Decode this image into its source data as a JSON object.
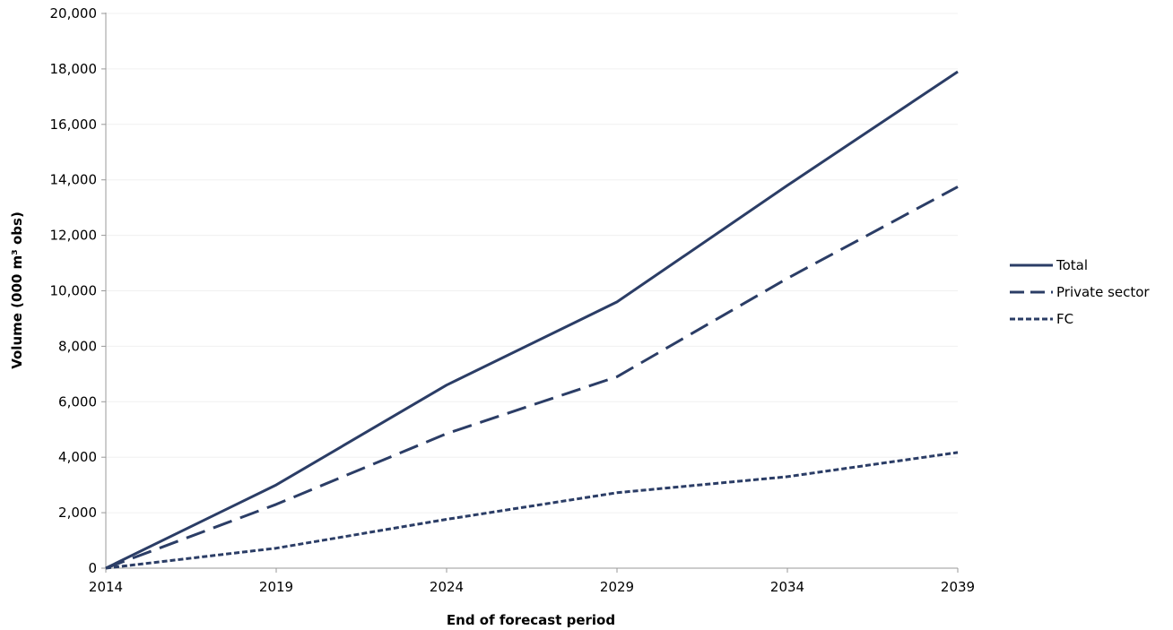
{
  "chart_data": {
    "type": "line",
    "xlabel": "End of forecast period",
    "ylabel": "Volume (000 m³ obs)",
    "x": [
      2014,
      2019,
      2024,
      2029,
      2034,
      2039
    ],
    "xlim": [
      2014,
      2039
    ],
    "ylim": [
      0,
      20000
    ],
    "yticks": [
      0,
      2000,
      4000,
      6000,
      8000,
      10000,
      12000,
      14000,
      16000,
      18000,
      20000
    ],
    "ytick_labels": [
      "0",
      "2,000",
      "4,000",
      "6,000",
      "8,000",
      "10,000",
      "12,000",
      "14,000",
      "16,000",
      "18,000",
      "20,000"
    ],
    "xtick_labels": [
      "2014",
      "2019",
      "2024",
      "2029",
      "2034",
      "2039"
    ],
    "grid": true,
    "legend_position": "right",
    "series": [
      {
        "name": "Total",
        "style": "solid",
        "values": [
          0,
          3000,
          6600,
          9600,
          13800,
          17900
        ]
      },
      {
        "name": "Private sector",
        "style": "dashed",
        "values": [
          0,
          2300,
          4850,
          6900,
          10450,
          13750
        ]
      },
      {
        "name": "FC",
        "style": "dotted",
        "values": [
          0,
          720,
          1760,
          2720,
          3300,
          4170
        ]
      }
    ],
    "colors": {
      "line": "#2b3d66",
      "grid": "#f0f0f0",
      "axis": "#999999"
    }
  }
}
